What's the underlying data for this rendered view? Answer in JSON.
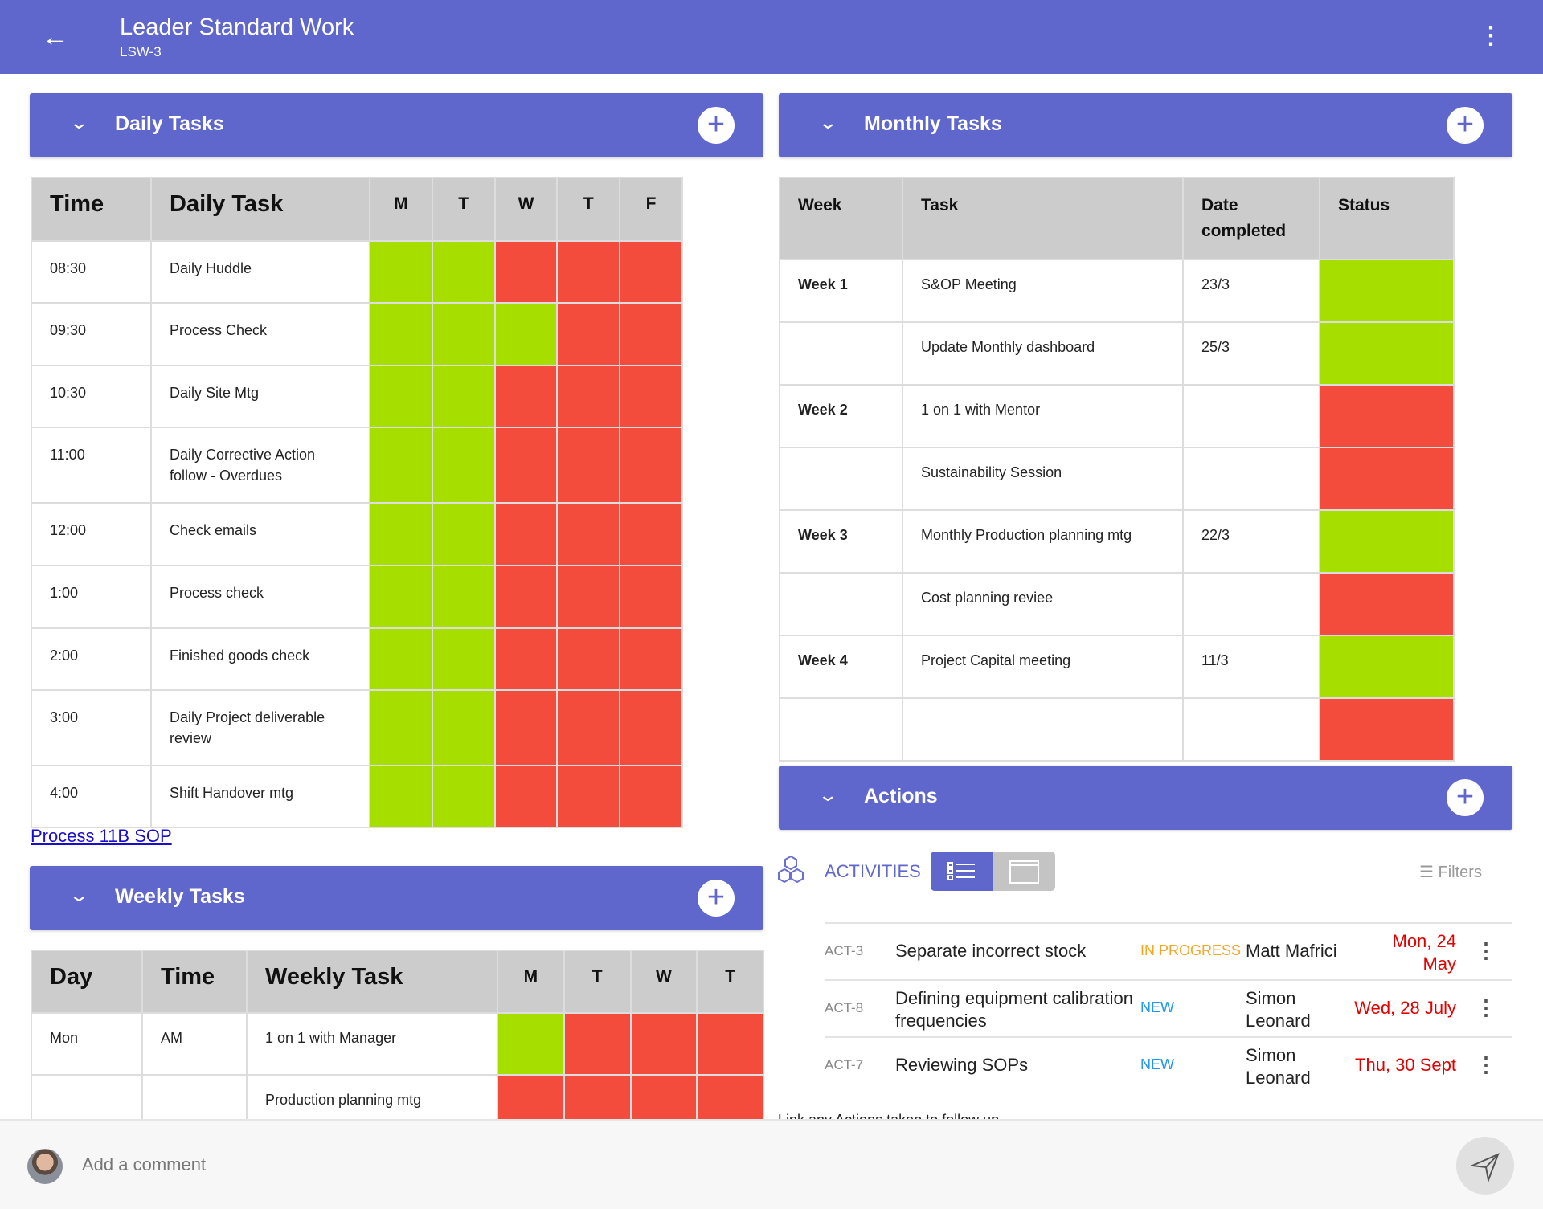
{
  "header": {
    "title": "Leader Standard Work",
    "subtitle": "LSW-3"
  },
  "colors": {
    "brand": "#5f67cc",
    "done": "#a6de00",
    "not_done": "#f44c3c",
    "header_gray": "#cccccc",
    "in_progress": "#f5a623",
    "new": "#2196f3",
    "due": "#e30000"
  },
  "daily": {
    "title": "Daily Tasks",
    "columns": [
      "Time",
      "Daily Task",
      "M",
      "T",
      "W",
      "T",
      "F"
    ],
    "rows": [
      {
        "time": "08:30",
        "task": "Daily Huddle",
        "status": [
          "g",
          "g",
          "r",
          "r",
          "r"
        ]
      },
      {
        "time": "09:30",
        "task": "Process Check",
        "status": [
          "g",
          "g",
          "g",
          "r",
          "r"
        ]
      },
      {
        "time": "10:30",
        "task": "Daily Site Mtg",
        "status": [
          "g",
          "g",
          "r",
          "r",
          "r"
        ]
      },
      {
        "time": "11:00",
        "task": "Daily Corrective Action follow - Overdues",
        "status": [
          "g",
          "g",
          "r",
          "r",
          "r"
        ]
      },
      {
        "time": "12:00",
        "task": "Check emails",
        "status": [
          "g",
          "g",
          "r",
          "r",
          "r"
        ]
      },
      {
        "time": "1:00",
        "task": "Process check",
        "status": [
          "g",
          "g",
          "r",
          "r",
          "r"
        ]
      },
      {
        "time": "2:00",
        "task": "Finished goods check",
        "status": [
          "g",
          "g",
          "r",
          "r",
          "r"
        ]
      },
      {
        "time": "3:00",
        "task": "Daily Project deliverable review",
        "status": [
          "g",
          "g",
          "r",
          "r",
          "r"
        ]
      },
      {
        "time": "4:00",
        "task": "Shift Handover mtg",
        "status": [
          "g",
          "g",
          "r",
          "r",
          "r"
        ]
      }
    ],
    "link": "Process 11B SOP"
  },
  "weekly": {
    "title": "Weekly Tasks",
    "columns": [
      "Day",
      "Time",
      "Weekly Task",
      "M",
      "T",
      "W",
      "T"
    ],
    "rows": [
      {
        "day": "Mon",
        "time": "AM",
        "task": "1 on 1 with Manager",
        "status": [
          "g",
          "r",
          "r",
          "r"
        ]
      },
      {
        "day": "",
        "time": "",
        "task": "Production planning mtg",
        "status": [
          "r",
          "r",
          "r",
          "r"
        ]
      }
    ]
  },
  "monthly": {
    "title": "Monthly Tasks",
    "columns": [
      "Week",
      "Task",
      "Date completed",
      "Status"
    ],
    "rows": [
      {
        "week": "Week 1",
        "task": "S&OP Meeting",
        "date": "23/3",
        "status": "g"
      },
      {
        "week": "",
        "task": "Update Monthly dashboard",
        "date": "25/3",
        "status": "g"
      },
      {
        "week": "Week 2",
        "task": "1 on 1 with Mentor",
        "date": "",
        "status": "r"
      },
      {
        "week": "",
        "task": "Sustainability Session",
        "date": "",
        "status": "r"
      },
      {
        "week": "Week 3",
        "task": "Monthly Production planning mtg",
        "date": "22/3",
        "status": "g"
      },
      {
        "week": "",
        "task": "Cost planning reviee",
        "date": "",
        "status": "r"
      },
      {
        "week": "Week 4",
        "task": "Project Capital meeting",
        "date": "11/3",
        "status": "g"
      },
      {
        "week": "",
        "task": "",
        "date": "",
        "status": "r"
      }
    ]
  },
  "actions": {
    "title": "Actions",
    "activities_label": "ACTIVITIES",
    "filters_label": "Filters",
    "view": "list",
    "items": [
      {
        "id": "ACT-3",
        "title": "Separate incorrect stock",
        "status": "IN PROGRESS",
        "person": "Matt Mafrici",
        "date": "Mon, 24 May"
      },
      {
        "id": "ACT-8",
        "title": "Defining equipment calibration frequencies",
        "status": "NEW",
        "person": "Simon Leonard",
        "date": "Wed, 28 July"
      },
      {
        "id": "ACT-7",
        "title": "Reviewing SOPs",
        "status": "NEW",
        "person": "Simon Leonard",
        "date": "Thu, 30 Sept"
      }
    ],
    "follow_up_text": "Link any Actions taken to follow up"
  },
  "comment": {
    "placeholder": "Add a comment"
  }
}
